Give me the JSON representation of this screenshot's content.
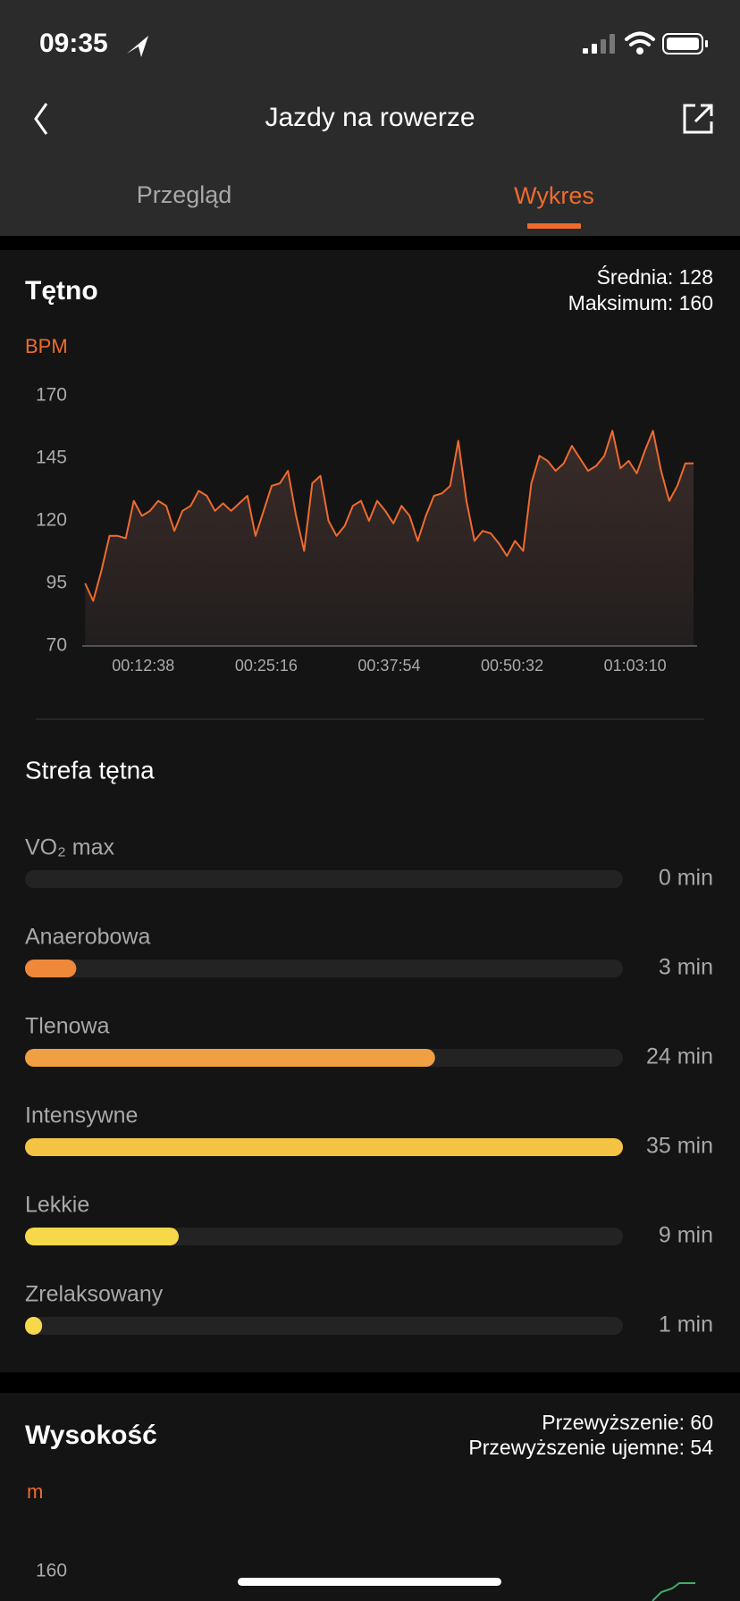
{
  "status_bar": {
    "time": "09:35"
  },
  "header": {
    "title": "Jazdy na rowerze"
  },
  "tabs": [
    {
      "label": "Przegląd",
      "active": false
    },
    {
      "label": "Wykres",
      "active": true
    }
  ],
  "heart_rate": {
    "title": "Tętno",
    "stats": [
      "Średnia: 128",
      "Maksimum: 160"
    ]
  },
  "chart_data": {
    "type": "line",
    "y_label": "BPM",
    "x": [
      400,
      450,
      500,
      550,
      600,
      650,
      700,
      750,
      800,
      850,
      900,
      950,
      1000,
      1050,
      1100,
      1150,
      1200,
      1250,
      1300,
      1350,
      1400,
      1450,
      1500,
      1550,
      1600,
      1650,
      1700,
      1750,
      1800,
      1850,
      1900,
      1950,
      2000,
      2050,
      2100,
      2150,
      2200,
      2250,
      2300,
      2350,
      2400,
      2450,
      2500,
      2550,
      2600,
      2650,
      2700,
      2750,
      2800,
      2850,
      2900,
      2950,
      3000,
      3050,
      3100,
      3150,
      3200,
      3250,
      3300,
      3350,
      3400,
      3450,
      3500,
      3550,
      3600,
      3650,
      3700,
      3750,
      3800,
      3850,
      3900,
      3950,
      4000,
      4050,
      4100,
      4150
    ],
    "series": [
      {
        "color": "#ef6b2e",
        "values": [
          95,
          88,
          100,
          114,
          114,
          113,
          128,
          122,
          124,
          128,
          126,
          116,
          124,
          126,
          132,
          130,
          124,
          127,
          124,
          127,
          130,
          114,
          124,
          134,
          135,
          140,
          122,
          108,
          135,
          138,
          120,
          114,
          118,
          126,
          128,
          120,
          128,
          124,
          119,
          126,
          122,
          112,
          122,
          130,
          131,
          134,
          152,
          128,
          112,
          116,
          115,
          111,
          106,
          112,
          108,
          135,
          146,
          144,
          140,
          143,
          150,
          145,
          140,
          142,
          146,
          156,
          141,
          144,
          139,
          148,
          156,
          140,
          128,
          134,
          143,
          143
        ]
      }
    ],
    "xlim": [
      382,
      4172
    ],
    "ylim": [
      70,
      170
    ],
    "xticks": [
      {
        "value": 758,
        "label": "00:12:38"
      },
      {
        "value": 1516,
        "label": "00:25:16"
      },
      {
        "value": 2274,
        "label": "00:37:54"
      },
      {
        "value": 3032,
        "label": "00:50:32"
      },
      {
        "value": 3790,
        "label": "01:03:10"
      }
    ],
    "yticks": [
      70,
      95,
      120,
      145,
      170
    ]
  },
  "zones": {
    "title": "Strefa tętna",
    "items": [
      {
        "name": "VO₂ max",
        "value": 0,
        "value_label": "0 min",
        "color": "#f0883a"
      },
      {
        "name": "Anaerobowa",
        "value": 3,
        "value_label": "3 min",
        "color": "#f0883a"
      },
      {
        "name": "Tlenowa",
        "value": 24,
        "value_label": "24 min",
        "color": "#f0a043"
      },
      {
        "name": "Intensywne",
        "value": 35,
        "value_label": "35 min",
        "color": "#f5c343"
      },
      {
        "name": "Lekkie",
        "value": 9,
        "value_label": "9 min",
        "color": "#f7d84a"
      },
      {
        "name": "Zrelaksowany",
        "value": 1,
        "value_label": "1 min",
        "color": "#f7d84a"
      }
    ]
  },
  "altitude": {
    "title": "Wysokość",
    "stats": [
      "Przewyższenie: 60",
      "Przewyższenie ujemne: 54"
    ],
    "unit": "m",
    "tick": "160"
  }
}
